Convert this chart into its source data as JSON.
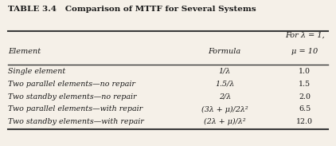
{
  "title": "TABLE 3.4   Comparison of MTTF for Several Systems",
  "col_header_line1": [
    "",
    "",
    "For λ = 1,"
  ],
  "col_header_line2": [
    "Element",
    "Formula",
    "μ = 10"
  ],
  "rows": [
    [
      "Single element",
      "1/λ",
      "1.0"
    ],
    [
      "Two parallel elements—no repair",
      "1.5/λ",
      "1.5"
    ],
    [
      "Two standby elements—no repair",
      "2/λ",
      "2.0"
    ],
    [
      "Two parallel elements—with repair",
      "(3λ + μ)/2λ²",
      "6.5"
    ],
    [
      "Two standby elements—with repair",
      "(2λ + μ)/λ²",
      "12.0"
    ]
  ],
  "bg_color": "#f5f0e8",
  "text_color": "#1a1a1a",
  "line_color": "#3a3a3a"
}
